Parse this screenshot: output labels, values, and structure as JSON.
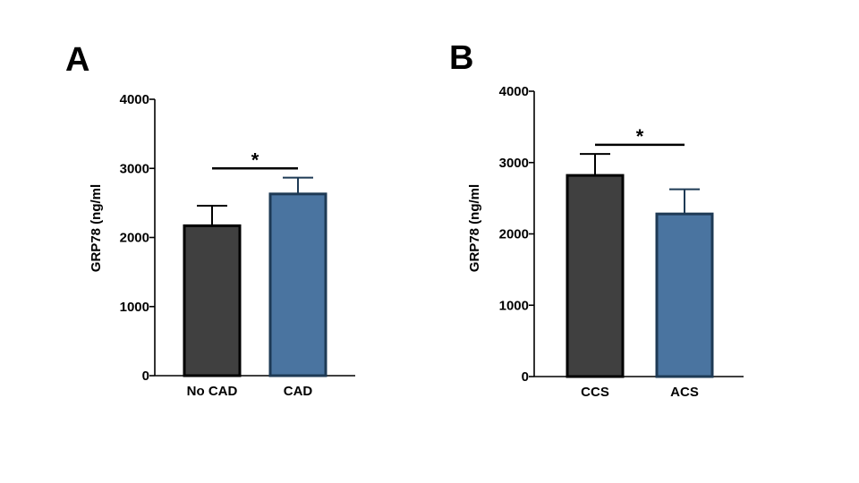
{
  "chart_data": [
    {
      "type": "bar",
      "panel": "A",
      "categories": [
        "No CAD",
        "CAD"
      ],
      "values": [
        2170,
        2630
      ],
      "errors": [
        290,
        235
      ],
      "colors": [
        "#404040",
        "#4a74a0"
      ],
      "edge_colors": [
        "#000000",
        "#1e3a55"
      ],
      "ylabel": "GRP78 (ng/ml",
      "ylim": [
        0,
        4000
      ],
      "yticks": [
        0,
        1000,
        2000,
        3000,
        4000
      ],
      "significance": {
        "between": [
          0,
          1
        ],
        "label": "*",
        "level": 3000
      }
    },
    {
      "type": "bar",
      "panel": "B",
      "categories": [
        "CCS",
        "ACS"
      ],
      "values": [
        2820,
        2280
      ],
      "errors": [
        300,
        345
      ],
      "colors": [
        "#404040",
        "#4a74a0"
      ],
      "edge_colors": [
        "#000000",
        "#1e3a55"
      ],
      "ylabel": "GRP78 (ng/ml",
      "ylim": [
        0,
        4000
      ],
      "yticks": [
        0,
        1000,
        2000,
        3000,
        4000
      ],
      "significance": {
        "between": [
          0,
          1
        ],
        "label": "*",
        "level": 3250
      }
    }
  ]
}
